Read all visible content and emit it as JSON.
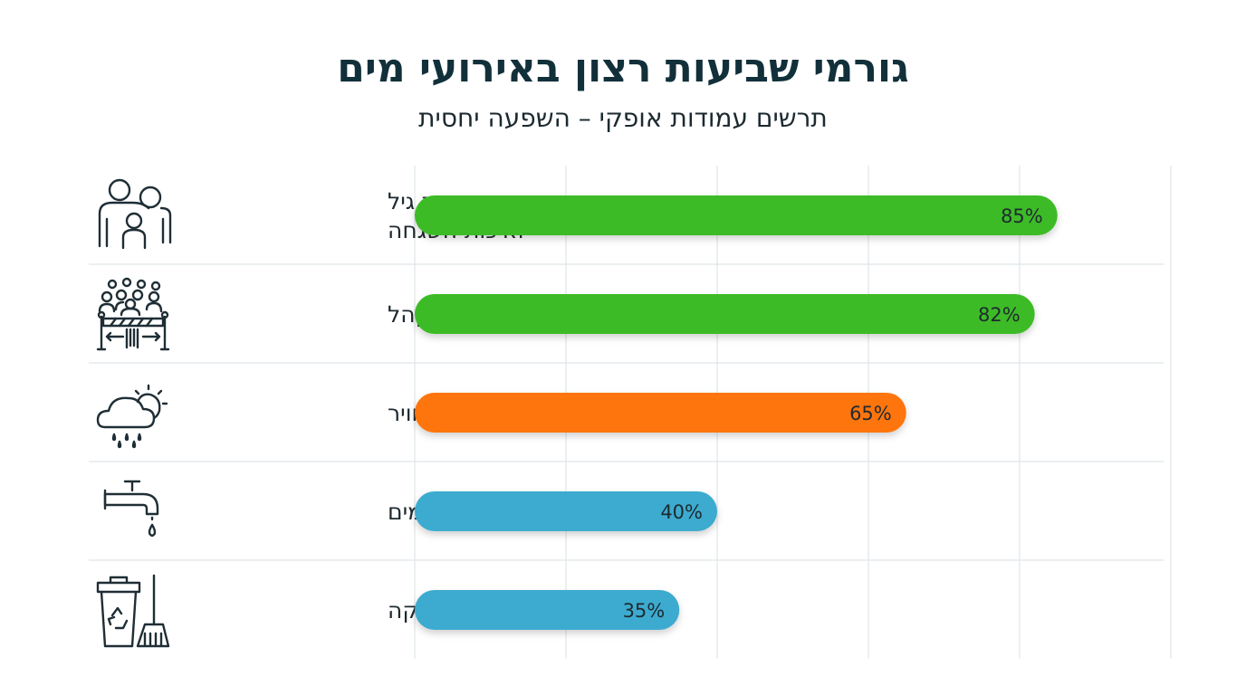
{
  "title": "גורמי שביעות רצון באירועי מים",
  "subtitle": "תרשים עמודות אופקי – השפעה יחסית",
  "chart_data": {
    "type": "bar",
    "orientation": "horizontal",
    "title": "גורמי שביעות רצון באירועי מים",
    "subtitle": "תרשים עמודות אופקי – השפעה יחסית",
    "categories": [
      [
        "התאמת גיל",
        "ואיכות השגחה"
      ],
      [
        "ניהול קהל"
      ],
      [
        "תנאי מזג אוויר"
      ],
      [
        "זמינות מים"
      ],
      [
        "ניקיון ותחזוקה"
      ]
    ],
    "values": [
      85,
      82,
      65,
      40,
      35
    ],
    "value_labels": [
      "85%",
      "82%",
      "65%",
      "40%",
      "35%"
    ],
    "colors": [
      "#3dbb28",
      "#3dbb28",
      "#ff7408",
      "#3eabcf",
      "#3eabcf"
    ],
    "icons": [
      "family-icon",
      "crowd-barrier-icon",
      "weather-cloud-sun-rain-icon",
      "water-tap-icon",
      "trash-broom-icon"
    ],
    "xlim": [
      0,
      100
    ],
    "grid": true,
    "xlabel": "",
    "ylabel": ""
  }
}
